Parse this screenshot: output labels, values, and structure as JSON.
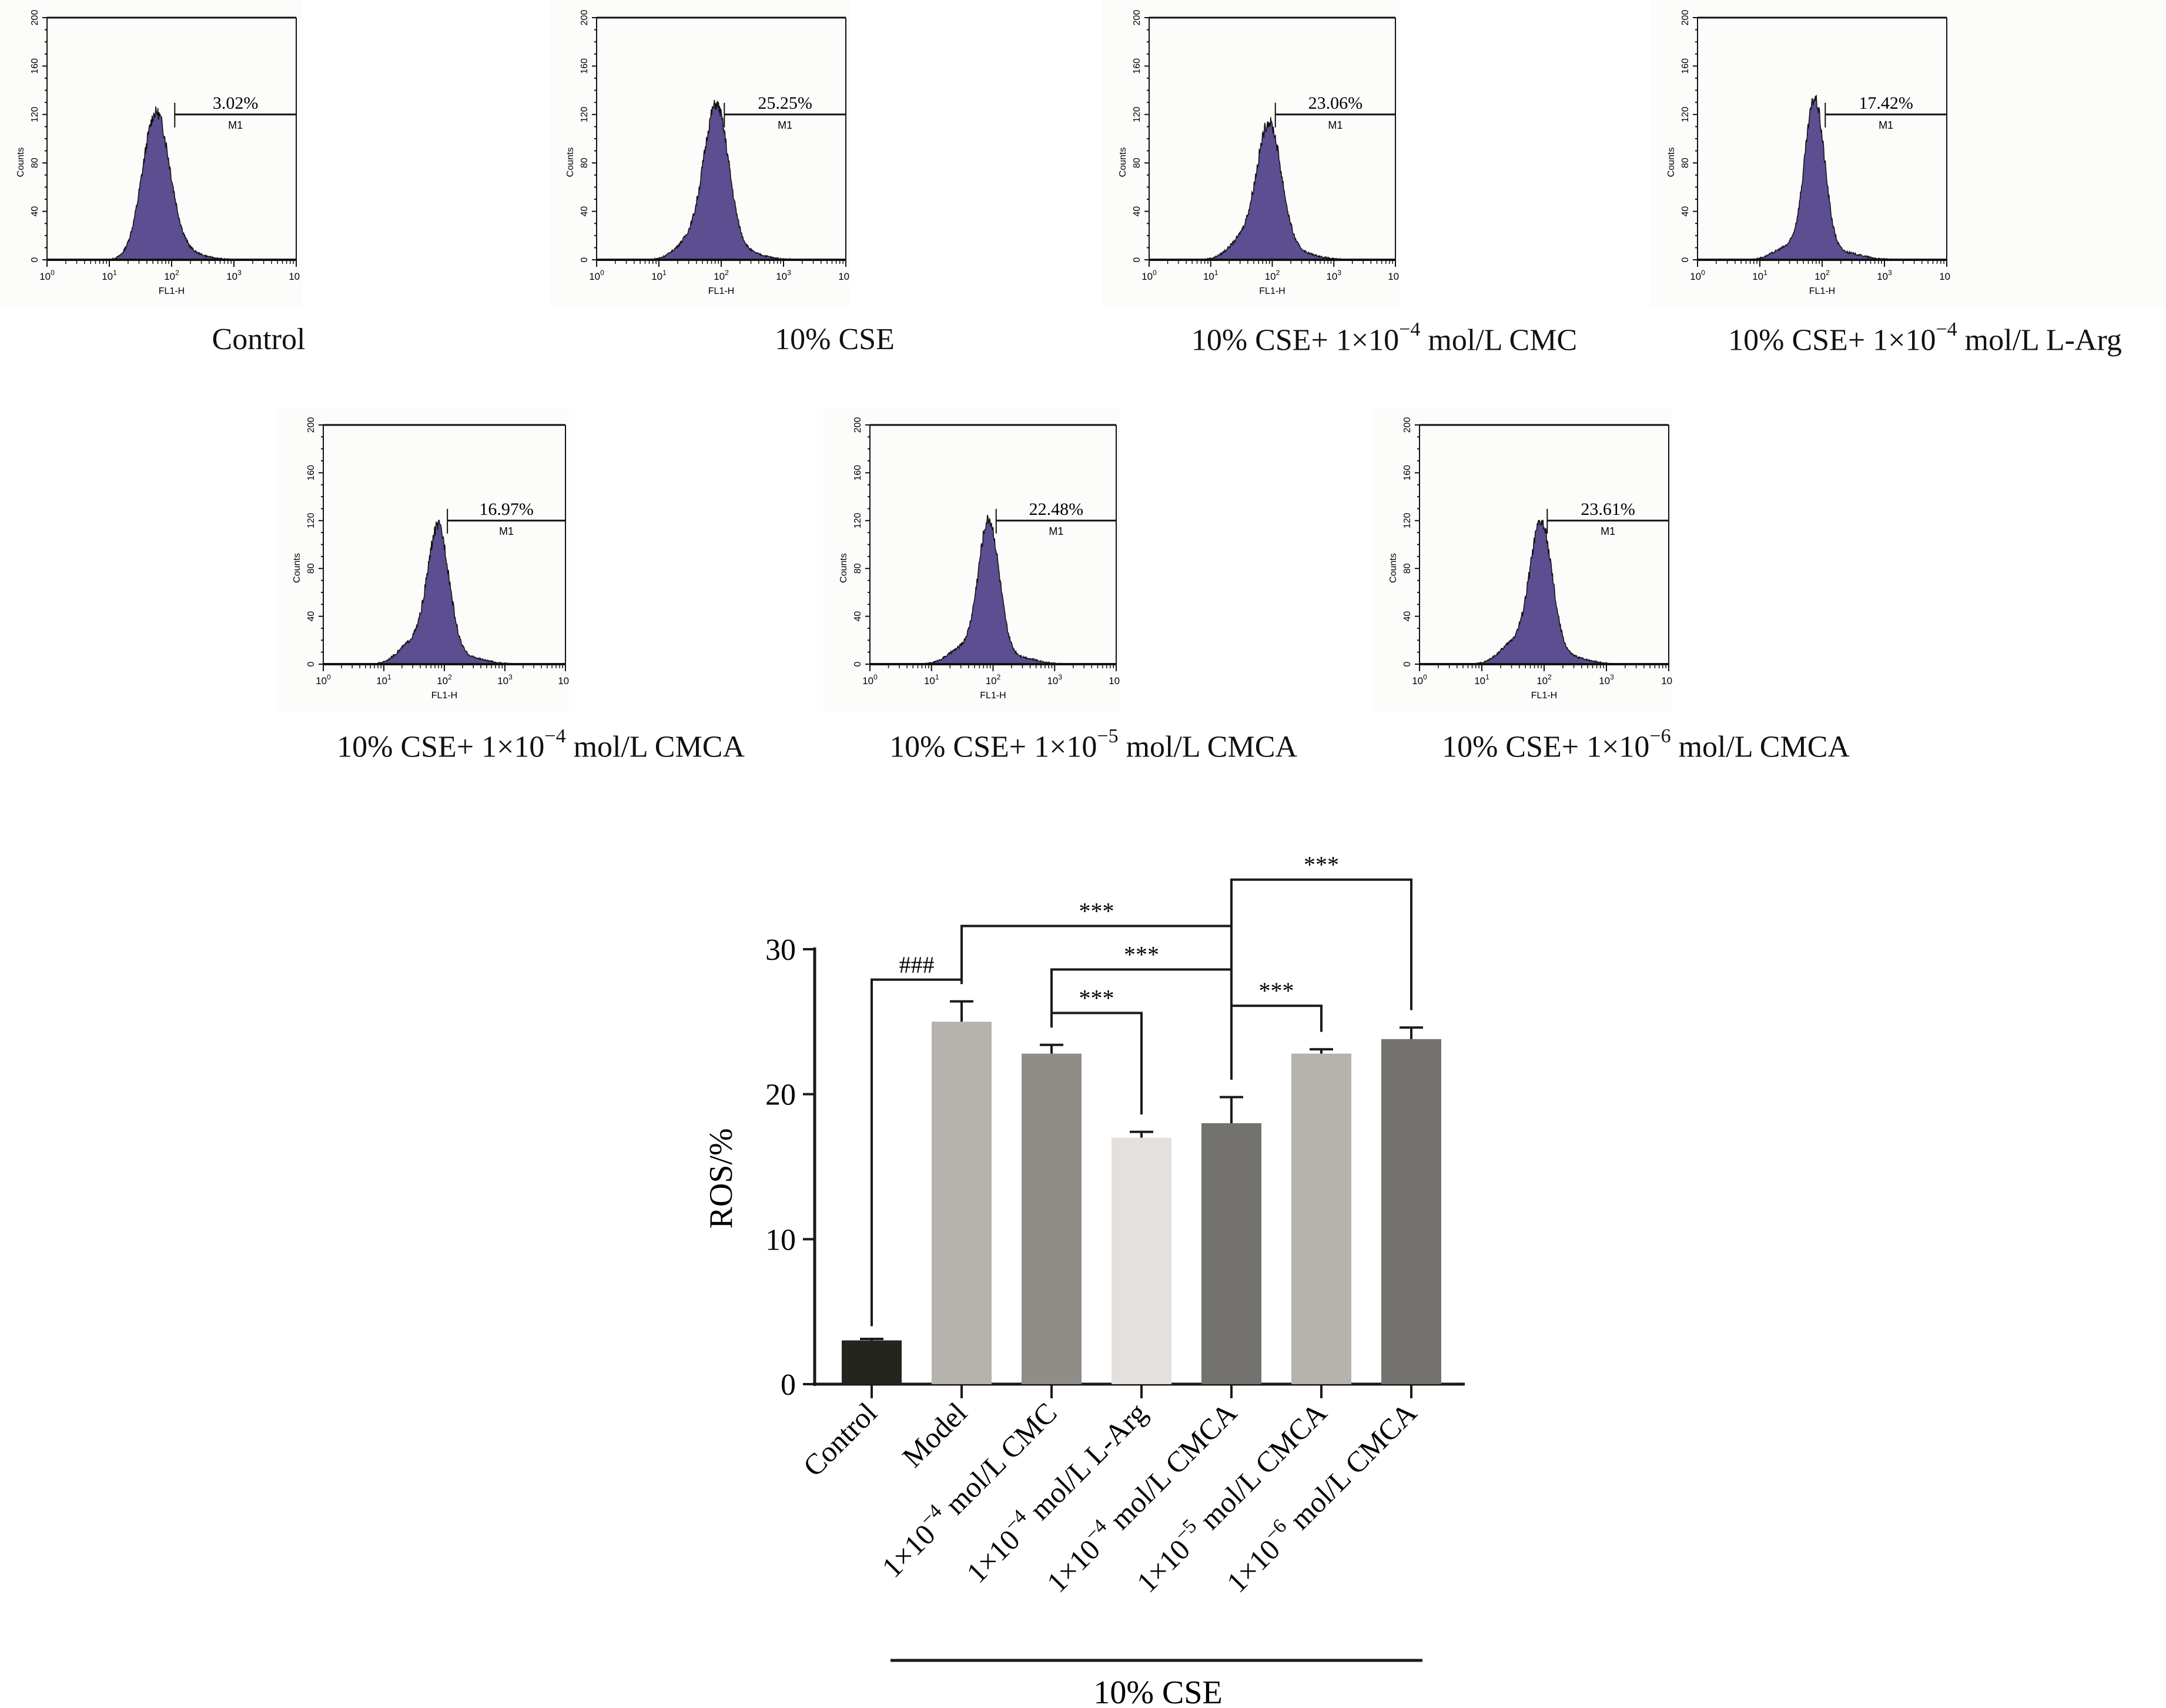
{
  "histograms": {
    "y_axis_label": "Counts",
    "x_axis_label": "FL1-H",
    "y_ticks": [
      "0",
      "40",
      "80",
      "120",
      "160",
      "200"
    ],
    "x_ticks": [
      {
        "base": "10",
        "exp": "0"
      },
      {
        "base": "10",
        "exp": "1"
      },
      {
        "base": "10",
        "exp": "2"
      },
      {
        "base": "10",
        "exp": "3"
      },
      {
        "base": "10",
        "exp": "4"
      }
    ],
    "gate_label": "M1",
    "fill_color": "#5c4e91",
    "panels": [
      {
        "caption_pre": "Control",
        "caption_exp": "",
        "caption_post": "",
        "percent": "3.02%",
        "peak_log": 1.75,
        "peak_count": 120,
        "spread": 0.22,
        "shoulder": 0.0
      },
      {
        "caption_pre": "10% CSE",
        "caption_exp": "",
        "caption_post": "",
        "percent": "25.25%",
        "peak_log": 1.92,
        "peak_count": 125,
        "spread": 0.2,
        "shoulder": 0.5
      },
      {
        "caption_pre": "10% CSE+ 1×10",
        "caption_exp": "−4",
        "caption_post": " mol/L CMC",
        "percent": "23.06%",
        "peak_log": 1.95,
        "peak_count": 110,
        "spread": 0.2,
        "shoulder": 0.55
      },
      {
        "caption_pre": "10% CSE+ 1×10",
        "caption_exp": "−4",
        "caption_post": " mol/L L-Arg",
        "percent": "17.42%",
        "peak_log": 1.88,
        "peak_count": 130,
        "spread": 0.16,
        "shoulder": 0.35
      },
      {
        "caption_pre": "10% CSE+ 1×10",
        "caption_exp": "−4",
        "caption_post": " mol/L CMCA",
        "percent": "16.97%",
        "peak_log": 1.9,
        "peak_count": 112,
        "spread": 0.18,
        "shoulder": 0.6
      },
      {
        "caption_pre": "10% CSE+ 1×10",
        "caption_exp": "−5",
        "caption_post": " mol/L CMCA",
        "percent": "22.48%",
        "peak_log": 1.93,
        "peak_count": 118,
        "spread": 0.17,
        "shoulder": 0.45
      },
      {
        "caption_pre": "10% CSE+ 1×10",
        "caption_exp": "−6",
        "caption_post": " mol/L CMCA",
        "percent": "23.61%",
        "peak_log": 1.95,
        "peak_count": 115,
        "spread": 0.18,
        "shoulder": 0.6
      }
    ]
  },
  "chart_data": {
    "type": "bar",
    "title": "",
    "ylabel": "ROS/%",
    "xlabel": "",
    "ylim": [
      0,
      30
    ],
    "yticks": [
      "0",
      "10",
      "20",
      "30"
    ],
    "group_label": "10% CSE",
    "categories": [
      {
        "pre": "Control",
        "exp": "",
        "post": ""
      },
      {
        "pre": "Model",
        "exp": "",
        "post": ""
      },
      {
        "pre": "1×10",
        "exp": "−4",
        "post": "  mol/L CMC"
      },
      {
        "pre": "1×10",
        "exp": "−4",
        "post": "  mol/L L-Arg"
      },
      {
        "pre": "1×10",
        "exp": "−4",
        "post": "  mol/L CMCA"
      },
      {
        "pre": "1×10",
        "exp": "−5",
        "post": "  mol/L CMCA"
      },
      {
        "pre": "1×10",
        "exp": "−6",
        "post": "  mol/L CMCA"
      }
    ],
    "values": [
      3.02,
      25.0,
      22.8,
      17.0,
      18.0,
      22.8,
      23.8
    ],
    "errors": [
      0.1,
      1.4,
      0.6,
      0.4,
      1.8,
      0.3,
      0.8
    ],
    "colors": [
      "#24251f",
      "#b6b2ae",
      "#908d89",
      "#e4e0dd",
      "#74726f",
      "#b6b2ae",
      "#74726f"
    ],
    "significance": [
      {
        "from": 0,
        "to": 1,
        "label": "###",
        "level": 27.9
      },
      {
        "from": 1,
        "to": 4,
        "label": "***",
        "level": 31.6
      },
      {
        "from": 2,
        "to": 4,
        "label": "***",
        "level": 28.6
      },
      {
        "from": 2,
        "to": 3,
        "label": "***",
        "level": 25.6
      },
      {
        "from": 4,
        "to": 5,
        "label": "***",
        "level": 26.1
      },
      {
        "from": 4,
        "to": 6,
        "label": "***",
        "level": 34.8
      }
    ]
  }
}
